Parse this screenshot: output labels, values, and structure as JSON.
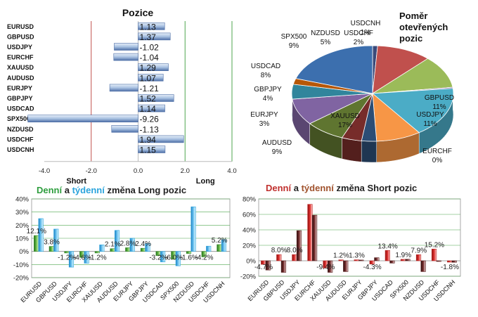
{
  "chart_data": [
    {
      "type": "bar",
      "orientation": "horizontal",
      "title": "Pozice",
      "categories": [
        "EURUSD",
        "GBPUSD",
        "USDJPY",
        "EURCHF",
        "XAUUSD",
        "AUDUSD",
        "EURJPY",
        "GBPJPY",
        "USDCAD",
        "SPX500",
        "NZDUSD",
        "USDCHF",
        "USDCNH"
      ],
      "values": [
        1.13,
        1.37,
        -1.02,
        -1.04,
        1.29,
        1.07,
        -1.21,
        1.52,
        1.14,
        -9.26,
        -1.13,
        1.94,
        1.15
      ],
      "value_labels": [
        "1.13",
        "1.37",
        "-1.02",
        "-1.04",
        "1.29",
        "1.07",
        "-1.21",
        "1.52",
        "1.14",
        "-9.26",
        "-1.13",
        "1.94",
        "1.15"
      ],
      "xlim": [
        -4,
        4
      ],
      "ticks": [
        "-4.0",
        "-2.0",
        "0.0",
        "2.0",
        "4.0"
      ],
      "short_label": "Short",
      "long_label": "Long",
      "colors": {
        "bar": "#9cb9de",
        "bar_dark": "#4f6fa8",
        "short_line": "#c0504d",
        "long_line": "#4fa64f"
      }
    },
    {
      "type": "pie",
      "title": [
        "Poměr",
        "otevřených",
        "pozic"
      ],
      "slices": [
        {
          "label": "USDCNH",
          "pct": 1,
          "color": "#3a4a7a"
        },
        {
          "label": "GBPUSD",
          "pct": 11,
          "color": "#c0504d"
        },
        {
          "label": "USDJPY",
          "pct": 11,
          "color": "#9bbb59"
        },
        {
          "label": "EURCHF",
          "pct": 0,
          "color": "#7f6aa3"
        },
        {
          "label": "XAUUSD",
          "pct": 17,
          "color": "#4bacc6"
        },
        {
          "label": "AUDUSD",
          "pct": 9,
          "color": "#f79646"
        },
        {
          "label": "EURJPY",
          "pct": 3,
          "color": "#2c4d75"
        },
        {
          "label": "GBPJPY",
          "pct": 4,
          "color": "#772c2a"
        },
        {
          "label": "USDCAD",
          "pct": 8,
          "color": "#5f7530"
        },
        {
          "label": "SPX500",
          "pct": 9,
          "color": "#8064a2"
        },
        {
          "label": "NZDUSD",
          "pct": 5,
          "color": "#31859c"
        },
        {
          "label": "USDCHF",
          "pct": 2,
          "color": "#b65708"
        },
        {
          "label": "EURUSD",
          "pct": 20,
          "color": "#3c6fae"
        }
      ],
      "labels_shown": [
        {
          "name": "USDCNH",
          "pct": "1%"
        },
        {
          "name": "NZDUSD",
          "pct": "5%"
        },
        {
          "name": "USDCHF",
          "pct": "2%"
        },
        {
          "name": "SPX500",
          "pct": "9%"
        },
        {
          "name": "USDCAD",
          "pct": "8%"
        },
        {
          "name": "GBPJPY",
          "pct": "4%"
        },
        {
          "name": "EURJPY",
          "pct": "3%"
        },
        {
          "name": "AUDUSD",
          "pct": "9%"
        },
        {
          "name": "XAUUSD",
          "pct": "17%"
        },
        {
          "name": "GBPUSD",
          "pct": "11%"
        },
        {
          "name": "USDJPY",
          "pct": "11%"
        },
        {
          "name": "EURCHF",
          "pct": "0%"
        }
      ]
    },
    {
      "type": "bar",
      "title_parts": [
        "Denní",
        " a ",
        "týdenní",
        " změna Long pozic"
      ],
      "title_colors": [
        "#2e9e3e",
        "#222222",
        "#2aa4dc",
        "#222222"
      ],
      "categories": [
        "EURUSD",
        "GBPUSD",
        "USDJPY",
        "EURCHF",
        "XAUUSD",
        "AUDUSD",
        "EURJPY",
        "GBPJPY",
        "USDCAD",
        "SPX500",
        "NZDUSD",
        "USDCHF",
        "USDCNH"
      ],
      "series": [
        {
          "name": "Denní",
          "values": [
            12.1,
            3.8,
            -1.2,
            -4.6,
            -1.2,
            2.1,
            2.8,
            2.4,
            -3.2,
            -6.0,
            -1.6,
            -4.2,
            5.2
          ],
          "color": "#3a8a2e"
        },
        {
          "name": "Týdenní",
          "values": [
            25,
            17,
            -12,
            -9,
            5,
            16,
            10,
            6,
            -8,
            -11,
            34,
            4,
            9
          ],
          "color": "#2aa4dc"
        }
      ],
      "data_labels": [
        {
          "i": 0,
          "text": "12.1%"
        },
        {
          "i": 1,
          "text": "3.8%"
        },
        {
          "i": 2,
          "text": "-1.2%"
        },
        {
          "i": 3,
          "text": "-4.6%"
        },
        {
          "i": 4,
          "text": "-1.2%"
        },
        {
          "i": 5,
          "text": "2.1%"
        },
        {
          "i": 6,
          "text": "2.8%"
        },
        {
          "i": 7,
          "text": "2.4%"
        },
        {
          "i": 8,
          "text": "-3.2%"
        },
        {
          "i": 9,
          "text": "-6.0%"
        },
        {
          "i": 10,
          "text": "-1.6%"
        },
        {
          "i": 11,
          "text": "-4.2%"
        },
        {
          "i": 12,
          "text": "5.2%"
        }
      ],
      "ylim": [
        -20,
        40
      ],
      "yticks": [
        "40%",
        "30%",
        "20%",
        "10%",
        "0%",
        "-10%",
        "-20%"
      ]
    },
    {
      "type": "bar",
      "title_parts": [
        "Denní",
        " a ",
        "týdenní",
        " změna Short pozic"
      ],
      "title_colors": [
        "#c0302e",
        "#222222",
        "#a0522d",
        "#222222"
      ],
      "categories": [
        "EURUSD",
        "GBPUSD",
        "USDJPY",
        "EURCHF",
        "XAUUSD",
        "AUDUSD",
        "EURJPY",
        "GBPJPY",
        "USDCAD",
        "SPX500",
        "NZDUSD",
        "USDCHF",
        "USDCNH"
      ],
      "series": [
        {
          "name": "Denní",
          "values": [
            -4.7,
            8.0,
            8.0,
            73,
            -9.4,
            1.2,
            1.3,
            -4.3,
            13.4,
            1.9,
            7.9,
            15.2,
            -1.8
          ],
          "color": "#c0302e"
        },
        {
          "name": "Týdenní",
          "values": [
            -12,
            -15,
            39,
            59,
            -15,
            -14,
            1,
            4,
            -3,
            2,
            -14,
            0,
            -2
          ],
          "color": "#5a2020"
        }
      ],
      "data_labels": [
        {
          "i": 0,
          "text": "-4.7%"
        },
        {
          "i": 1,
          "text": "8.0%"
        },
        {
          "i": 2,
          "text": "8.0%"
        },
        {
          "i": 4,
          "text": "-9.4%"
        },
        {
          "i": 5,
          "text": "1.2%"
        },
        {
          "i": 6,
          "text": "1.3%"
        },
        {
          "i": 7,
          "text": "-4.3%"
        },
        {
          "i": 8,
          "text": "13.4%"
        },
        {
          "i": 9,
          "text": "1.9%"
        },
        {
          "i": 10,
          "text": "7.9%"
        },
        {
          "i": 11,
          "text": "15.2%"
        },
        {
          "i": 12,
          "text": "-1.8%"
        }
      ],
      "ylim": [
        -20,
        80
      ],
      "yticks": [
        "80%",
        "60%",
        "40%",
        "20%",
        "0%",
        "-20%"
      ]
    }
  ]
}
